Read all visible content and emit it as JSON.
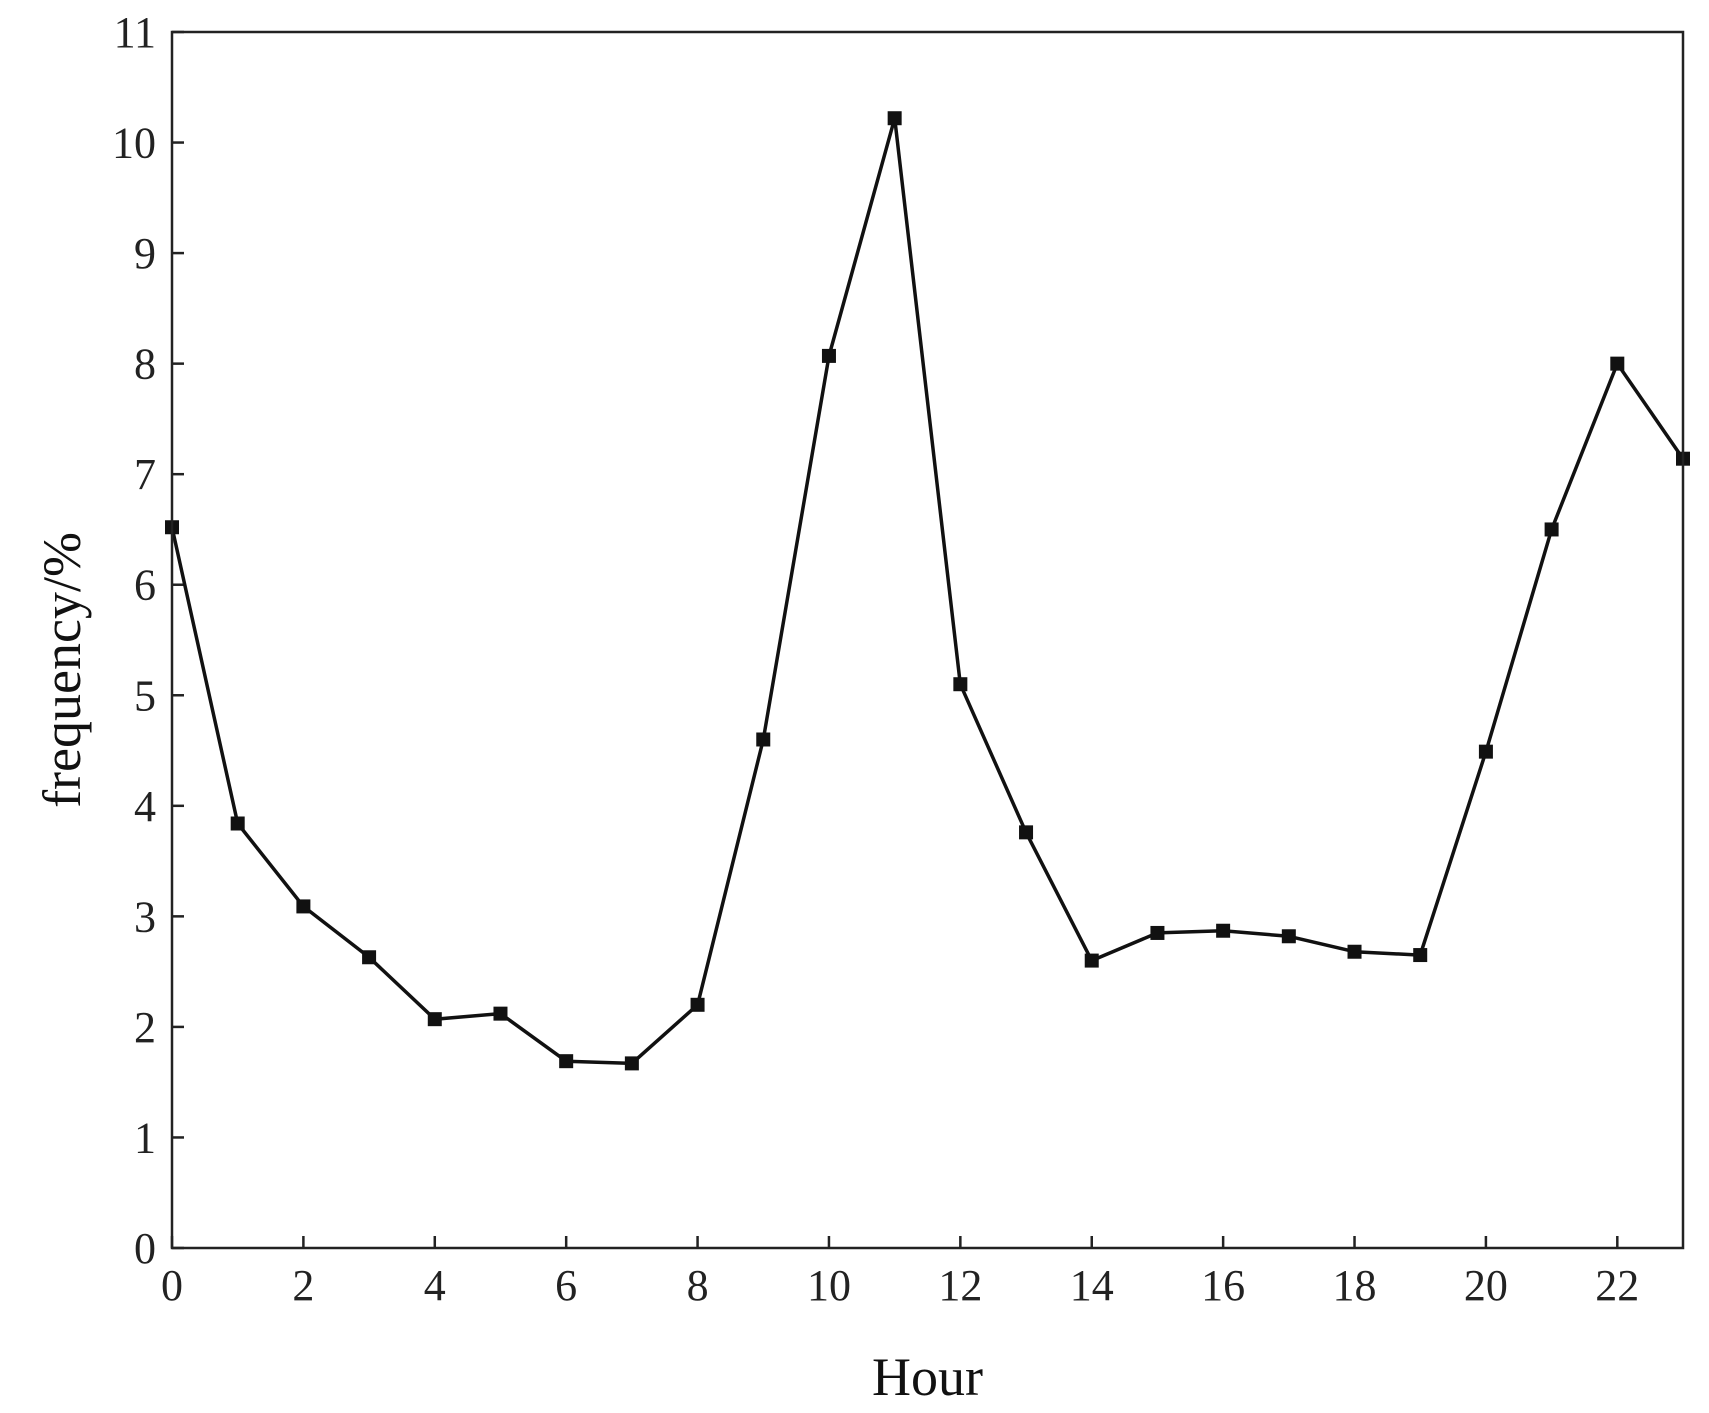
{
  "chart_data": {
    "type": "line",
    "title": "",
    "xlabel": "Hour",
    "ylabel": "frequency/%",
    "xlim": [
      0,
      23
    ],
    "ylim": [
      0,
      11
    ],
    "xticks": [
      0,
      2,
      4,
      6,
      8,
      10,
      12,
      14,
      16,
      18,
      20,
      22
    ],
    "yticks": [
      0,
      1,
      2,
      3,
      4,
      5,
      6,
      7,
      8,
      9,
      10,
      11
    ],
    "grid": false,
    "marker": "square",
    "line_color": "#111111",
    "series": [
      {
        "x": [
          0,
          1,
          2,
          3,
          4,
          5,
          6,
          7,
          8,
          9,
          10,
          11,
          12,
          13,
          14,
          15,
          16,
          17,
          18,
          19,
          20,
          21,
          22,
          23
        ],
        "values": [
          6.52,
          3.84,
          3.09,
          2.63,
          2.07,
          2.12,
          1.69,
          1.67,
          2.2,
          4.6,
          8.07,
          10.22,
          5.1,
          3.76,
          2.6,
          2.85,
          2.87,
          2.82,
          2.68,
          2.65,
          4.49,
          6.5,
          8.0,
          7.14
        ]
      }
    ]
  }
}
